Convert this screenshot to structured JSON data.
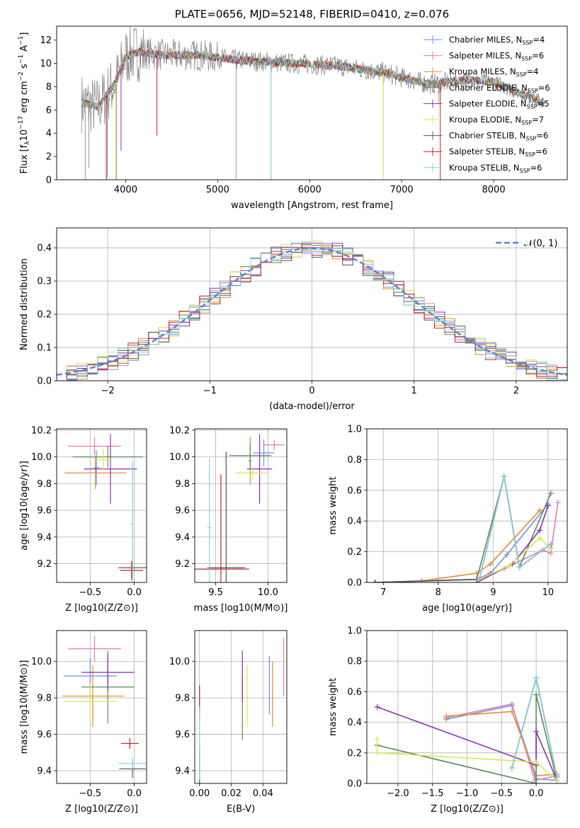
{
  "figure_title": "PLATE=0656, MJD=52148, FIBERID=0410, z=0.076",
  "colors": {
    "chabrier_miles": "#6f8fe0",
    "salpeter_miles": "#e07fb5",
    "kroupa_miles": "#e58a2c",
    "chabrier_elodie": "#5b8a5b",
    "salpeter_elodie": "#8e2cb5",
    "kroupa_elodie": "#d8e84a",
    "chabrier_stelib": "#555555",
    "salpeter_stelib": "#c0232a",
    "kroupa_stelib": "#7fd8e0",
    "data": "#808080",
    "normal": "#5a86d6",
    "grid": "#b0b0b0"
  },
  "chart_data": [
    {
      "type": "line",
      "id": "spectrum",
      "title": "PLATE=0656, MJD=52148, FIBERID=0410, z=0.076",
      "xlabel": "wavelength [Angstrom, rest frame]",
      "ylabel": "Flux [f_λ 10^-17 erg cm^-2 s^-1 A^-1]",
      "xlim": [
        3250,
        8800
      ],
      "ylim": [
        0,
        13.2
      ],
      "xticks": [
        "4000",
        "5000",
        "6000",
        "7000",
        "8000"
      ],
      "yticks": [
        "0",
        "2",
        "4",
        "6",
        "8",
        "10",
        "12"
      ],
      "legend_position": "top-right",
      "series": [
        {
          "name": "Chabrier MILES, N_SSP=4",
          "key": "chabrier_miles"
        },
        {
          "name": "Salpeter MILES, N_SSP=6",
          "key": "salpeter_miles"
        },
        {
          "name": "Kroupa MILES, N_SSP=4",
          "key": "kroupa_miles"
        },
        {
          "name": "Chabrier ELODIE, N_SSP=6",
          "key": "chabrier_elodie"
        },
        {
          "name": "Salpeter ELODIE, N_SSP=5",
          "key": "salpeter_elodie"
        },
        {
          "name": "Kroupa ELODIE, N_SSP=7",
          "key": "kroupa_elodie"
        },
        {
          "name": "Chabrier STELIB, N_SSP=6",
          "key": "chabrier_stelib"
        },
        {
          "name": "Salpeter STELIB, N_SSP=6",
          "key": "salpeter_stelib"
        },
        {
          "name": "Kroupa STELIB, N_SSP=6",
          "key": "kroupa_stelib"
        }
      ],
      "continuum": [
        [
          3520,
          6.6
        ],
        [
          3700,
          6.3
        ],
        [
          3900,
          8.5
        ],
        [
          4000,
          10.6
        ],
        [
          4150,
          11.0
        ],
        [
          4400,
          10.7
        ],
        [
          4800,
          10.7
        ],
        [
          5200,
          10.3
        ],
        [
          5800,
          10.0
        ],
        [
          6300,
          9.8
        ],
        [
          6800,
          9.2
        ],
        [
          7300,
          8.2
        ],
        [
          7700,
          8.6
        ],
        [
          8000,
          8.4
        ],
        [
          8300,
          7.4
        ],
        [
          8550,
          6.6
        ]
      ]
    },
    {
      "type": "line",
      "id": "residual-histogram",
      "xlabel": "(data-model)/error",
      "ylabel": "Normed distribution",
      "xlim": [
        -2.5,
        2.5
      ],
      "ylim": [
        0,
        0.46
      ],
      "xticks": [
        "−2",
        "−1",
        "0",
        "1",
        "2"
      ],
      "yticks": [
        "0.0",
        "0.1",
        "0.2",
        "0.3",
        "0.4"
      ],
      "legend_position": "top-right",
      "normal_label": "𝒩(0, 1)",
      "bin_width": 0.1
    },
    {
      "type": "scatter",
      "id": "age-vs-Z",
      "xlabel": "Z [log10(Z/Z⊙)]",
      "ylabel": "age [log10(age/yr)]",
      "xlim": [
        -0.88,
        0.14
      ],
      "ylim": [
        9.06,
        10.21
      ],
      "xticks": [
        "−0.5",
        "0.0"
      ],
      "yticks": [
        "9.2",
        "9.4",
        "9.6",
        "9.8",
        "10.0",
        "10.2"
      ],
      "points": [
        {
          "key": "chabrier_miles",
          "x": -0.43,
          "y": 9.92,
          "xerr": 0.03,
          "yerr": 0.13
        },
        {
          "key": "salpeter_miles",
          "x": -0.45,
          "y": 10.08,
          "xerr": 0.3,
          "yerr": 0.07
        },
        {
          "key": "kroupa_miles",
          "x": -0.44,
          "y": 9.88,
          "xerr": 0.35,
          "yerr": 0.12
        },
        {
          "key": "chabrier_elodie",
          "x": -0.3,
          "y": 10.0,
          "xerr": 0.4,
          "yerr": 0.08
        },
        {
          "key": "salpeter_elodie",
          "x": -0.27,
          "y": 9.91,
          "xerr": 0.3,
          "yerr": 0.26
        },
        {
          "key": "kroupa_elodie",
          "x": -0.35,
          "y": 9.98,
          "xerr": 0.1,
          "yerr": 0.08
        },
        {
          "key": "chabrier_stelib",
          "x": -0.02,
          "y": 9.17,
          "xerr": 0.16,
          "yerr": 0.06
        },
        {
          "key": "salpeter_stelib",
          "x": -0.03,
          "y": 9.15,
          "xerr": 0.13,
          "yerr": 0.07
        },
        {
          "key": "kroupa_stelib",
          "x": -0.02,
          "y": 9.5,
          "xerr": 0.02,
          "yerr": 0.47
        }
      ]
    },
    {
      "type": "scatter",
      "id": "age-vs-mass",
      "xlabel": "mass [log10(M/M⊙)]",
      "ylabel": "",
      "xlim": [
        9.3,
        10.18
      ],
      "ylim": [
        9.06,
        10.21
      ],
      "xticks": [
        "9.5",
        "10.0"
      ],
      "yticks": [
        "9.2",
        "9.4",
        "9.6",
        "9.8",
        "10.0",
        "10.2"
      ],
      "points": [
        {
          "key": "chabrier_miles",
          "x": 9.96,
          "y": 10.03,
          "xerr": 0.1,
          "yerr": 0.1
        },
        {
          "key": "salpeter_miles",
          "x": 10.06,
          "y": 10.09,
          "xerr": 0.1,
          "yerr": 0.04
        },
        {
          "key": "kroupa_miles",
          "x": 9.83,
          "y": 9.97,
          "xerr": 0.02,
          "yerr": 0.18
        },
        {
          "key": "chabrier_elodie",
          "x": 9.83,
          "y": 10.01,
          "xerr": 0.2,
          "yerr": 0.09
        },
        {
          "key": "salpeter_elodie",
          "x": 9.92,
          "y": 9.91,
          "xerr": 0.12,
          "yerr": 0.26
        },
        {
          "key": "kroupa_elodie",
          "x": 9.85,
          "y": 9.88,
          "xerr": 0.15,
          "yerr": 0.05
        },
        {
          "key": "chabrier_stelib",
          "x": 9.6,
          "y": 9.17,
          "xerr": 0.18,
          "yerr": 0.87
        },
        {
          "key": "salpeter_stelib",
          "x": 9.55,
          "y": 9.16,
          "xerr": 0.27,
          "yerr": 0.71
        },
        {
          "key": "kroupa_stelib",
          "x": 9.44,
          "y": 9.47,
          "xerr": 0.02,
          "yerr": 0.52
        }
      ]
    },
    {
      "type": "line",
      "id": "weight-vs-age",
      "xlabel": "age [log10(age/yr)]",
      "ylabel": "mass weight",
      "xlim": [
        6.7,
        10.35
      ],
      "ylim": [
        0,
        1
      ],
      "xticks": [
        "7",
        "8",
        "9",
        "10"
      ],
      "yticks": [
        "0.0",
        "0.2",
        "0.4",
        "0.6",
        "0.8",
        "1.0"
      ],
      "series": [
        {
          "key": "chabrier_miles",
          "x": [
            6.85,
            7.7,
            8.7,
            8.95,
            9.25,
            10.0
          ],
          "y": [
            0.0,
            0.01,
            0.02,
            0.06,
            0.18,
            0.51
          ]
        },
        {
          "key": "salpeter_miles",
          "x": [
            7.7,
            8.7,
            9.2,
            9.9,
            10.05,
            10.18
          ],
          "y": [
            0.01,
            0.02,
            0.09,
            0.21,
            0.19,
            0.52
          ]
        },
        {
          "key": "kroupa_miles",
          "x": [
            7.7,
            8.7,
            8.95,
            9.85
          ],
          "y": [
            0.01,
            0.06,
            0.12,
            0.47
          ]
        },
        {
          "key": "chabrier_elodie",
          "x": [
            6.85,
            8.7,
            9.2,
            9.48,
            10.05
          ],
          "y": [
            0.0,
            0.02,
            0.69,
            0.1,
            0.58
          ]
        },
        {
          "key": "salpeter_elodie",
          "x": [
            8.7,
            9.35,
            9.85,
            10.0
          ],
          "y": [
            0.0,
            0.12,
            0.34,
            0.5
          ]
        },
        {
          "key": "kroupa_elodie",
          "x": [
            8.75,
            9.3,
            9.85,
            10.05
          ],
          "y": [
            0.02,
            0.11,
            0.29,
            0.22
          ]
        },
        {
          "key": "chabrier_stelib",
          "x": [
            6.85,
            8.75,
            9.2,
            9.48,
            10.05
          ],
          "y": [
            0.0,
            0.02,
            0.69,
            0.1,
            0.25
          ]
        },
        {
          "key": "salpeter_stelib",
          "x": [
            8.75,
            9.2,
            9.48,
            10.05
          ],
          "y": [
            0.02,
            0.69,
            0.1,
            0.25
          ]
        },
        {
          "key": "kroupa_stelib",
          "x": [
            8.75,
            9.2,
            9.48,
            10.05
          ],
          "y": [
            0.02,
            0.69,
            0.1,
            0.25
          ]
        }
      ]
    },
    {
      "type": "scatter",
      "id": "mass-vs-Z",
      "xlabel": "Z [log10(Z/Z⊙)]",
      "ylabel": "mass [log10(M/M⊙)]",
      "xlim": [
        -0.88,
        0.14
      ],
      "ylim": [
        9.33,
        10.17
      ],
      "xticks": [
        "−0.5",
        "0.0"
      ],
      "yticks": [
        "9.4",
        "9.6",
        "9.8",
        "10.0"
      ],
      "points": [
        {
          "key": "chabrier_miles",
          "x": -0.5,
          "y": 9.92,
          "xerr": 0.3,
          "yerr": 0.1
        },
        {
          "key": "salpeter_miles",
          "x": -0.45,
          "y": 10.07,
          "xerr": 0.3,
          "yerr": 0.07
        },
        {
          "key": "kroupa_miles",
          "x": -0.47,
          "y": 9.81,
          "xerr": 0.35,
          "yerr": 0.17
        },
        {
          "key": "chabrier_elodie",
          "x": -0.3,
          "y": 9.86,
          "xerr": 0.3,
          "yerr": 0.2
        },
        {
          "key": "salpeter_elodie",
          "x": -0.3,
          "y": 9.94,
          "xerr": 0.3,
          "yerr": 0.1
        },
        {
          "key": "kroupa_elodie",
          "x": -0.5,
          "y": 9.78,
          "xerr": 0.3,
          "yerr": 0.1
        },
        {
          "key": "chabrier_stelib",
          "x": -0.02,
          "y": 9.41,
          "xerr": 0.15,
          "yerr": 0.05
        },
        {
          "key": "salpeter_stelib",
          "x": -0.05,
          "y": 9.55,
          "xerr": 0.1,
          "yerr": 0.03
        },
        {
          "key": "kroupa_stelib",
          "x": -0.02,
          "y": 9.44,
          "xerr": 0.16,
          "yerr": 0.03
        }
      ]
    },
    {
      "type": "scatter",
      "id": "mass-vs-ebv",
      "xlabel": "E(B-V)",
      "ylabel": "",
      "xlim": [
        -0.003,
        0.055
      ],
      "ylim": [
        9.33,
        10.17
      ],
      "xticks": [
        "0.00",
        "0.02",
        "0.04"
      ],
      "yticks": [
        "9.4",
        "9.6",
        "9.8",
        "10.0"
      ],
      "points": [
        {
          "key": "chabrier_miles",
          "x": 0.044,
          "y": 9.87,
          "xerr": 0,
          "yerr": 0.16
        },
        {
          "key": "salpeter_miles",
          "x": 0.053,
          "y": 9.97,
          "xerr": 0,
          "yerr": 0.16
        },
        {
          "key": "kroupa_miles",
          "x": 0.046,
          "y": 9.82,
          "xerr": 0,
          "yerr": 0.18
        },
        {
          "key": "chabrier_elodie",
          "x": 0.027,
          "y": 9.75,
          "xerr": 0,
          "yerr": 0.18
        },
        {
          "key": "salpeter_elodie",
          "x": 0.027,
          "y": 9.92,
          "xerr": 0,
          "yerr": 0.14
        },
        {
          "key": "kroupa_elodie",
          "x": 0.03,
          "y": 9.81,
          "xerr": 0,
          "yerr": 0.17
        },
        {
          "key": "chabrier_stelib",
          "x": 0.0,
          "y": 9.43,
          "xerr": 0,
          "yerr": 0.1
        },
        {
          "key": "salpeter_stelib",
          "x": 0.0,
          "y": 9.78,
          "xerr": 0,
          "yerr": 0.09
        },
        {
          "key": "kroupa_stelib",
          "x": 0.0,
          "y": 9.55,
          "xerr": 0,
          "yerr": 0.2
        }
      ]
    },
    {
      "type": "line",
      "id": "weight-vs-Z",
      "xlabel": "Z [log10(Z/Z⊙)]",
      "ylabel": "mass weight",
      "xlim": [
        -2.45,
        0.45
      ],
      "ylim": [
        0,
        1
      ],
      "xticks": [
        "−2.0",
        "−1.5",
        "−1.0",
        "−0.5",
        "0.0"
      ],
      "yticks": [
        "0.0",
        "0.2",
        "0.4",
        "0.6",
        "0.8",
        "1.0"
      ],
      "series": [
        {
          "key": "chabrier_miles",
          "x": [
            -1.3,
            -0.35,
            0.0,
            0.3
          ],
          "y": [
            0.42,
            0.51,
            0.03,
            0.02
          ]
        },
        {
          "key": "salpeter_miles",
          "x": [
            -1.3,
            -0.35,
            -0.02,
            0.3
          ],
          "y": [
            0.43,
            0.52,
            0.02,
            0.05
          ]
        },
        {
          "key": "kroupa_miles",
          "x": [
            -1.3,
            -0.35,
            0.0,
            0.3
          ],
          "y": [
            0.44,
            0.47,
            0.05,
            0.06
          ]
        },
        {
          "key": "chabrier_elodie",
          "x": [
            -2.3,
            0.0,
            0.0,
            0.3
          ],
          "y": [
            0.25,
            0.0,
            0.58,
            0.02
          ]
        },
        {
          "key": "salpeter_elodie",
          "x": [
            -2.3,
            0.0,
            0.0,
            0.3
          ],
          "y": [
            0.5,
            0.12,
            0.34,
            0.02
          ]
        },
        {
          "key": "kroupa_elodie",
          "x": [
            -2.3,
            -2.3,
            0.0,
            0.3
          ],
          "y": [
            0.29,
            0.2,
            0.14,
            0.02
          ]
        },
        {
          "key": "chabrier_stelib",
          "x": [
            -0.35,
            0.0,
            0.3
          ],
          "y": [
            0.1,
            0.69,
            0.04
          ]
        },
        {
          "key": "salpeter_stelib",
          "x": [
            -0.35,
            0.0,
            0.3
          ],
          "y": [
            0.1,
            0.69,
            0.04
          ]
        },
        {
          "key": "kroupa_stelib",
          "x": [
            -0.35,
            0.0,
            0.3
          ],
          "y": [
            0.1,
            0.69,
            0.04
          ]
        }
      ]
    }
  ]
}
